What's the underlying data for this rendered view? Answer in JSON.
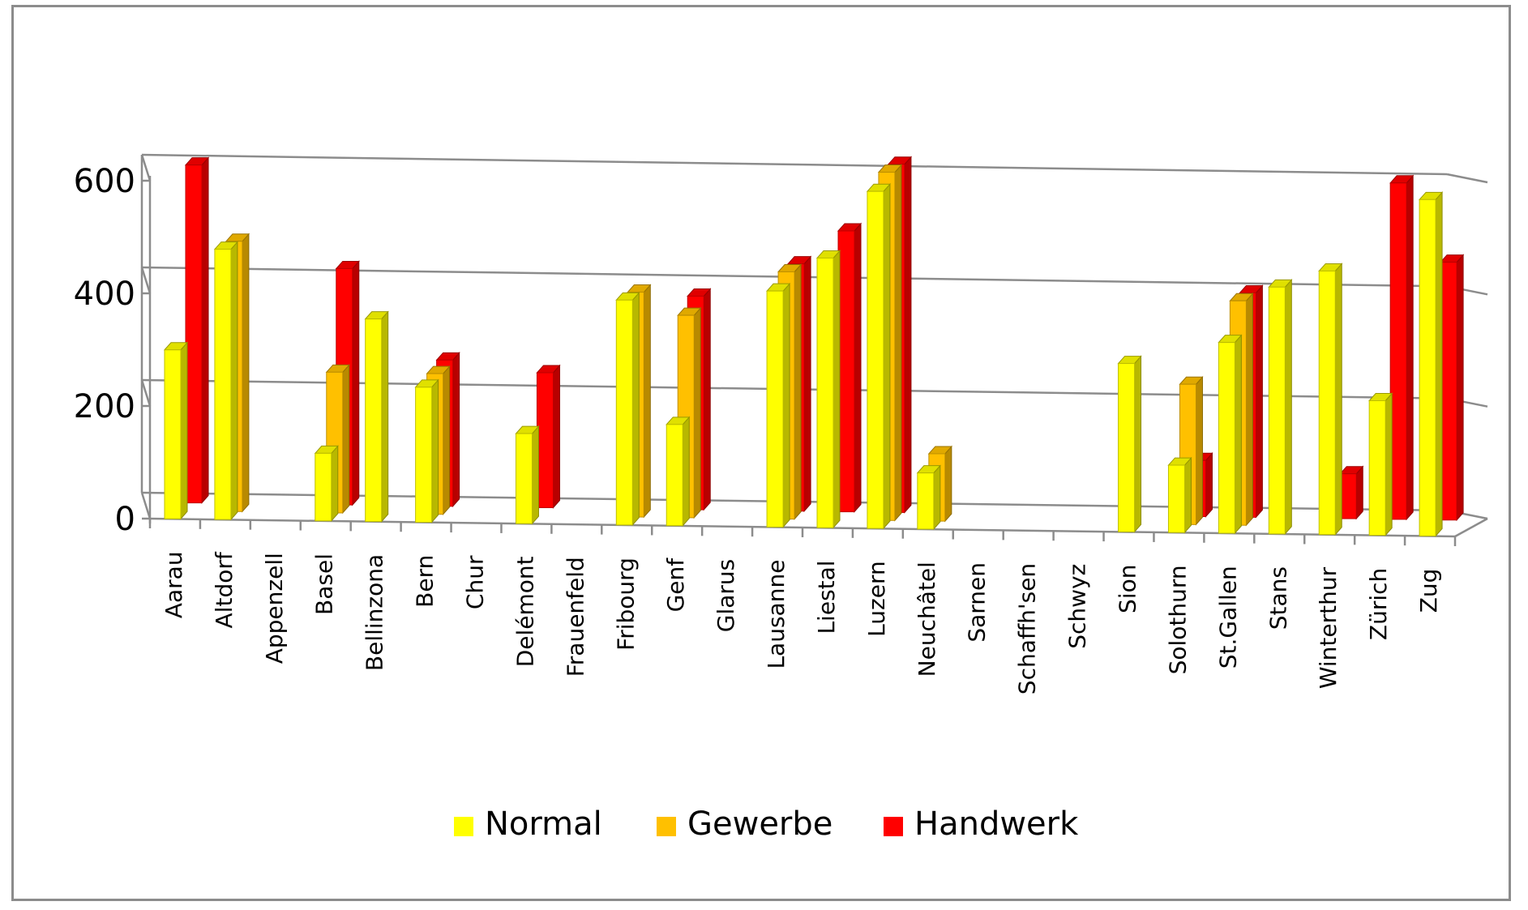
{
  "chart_data": {
    "type": "bar",
    "title": "",
    "xlabel": "",
    "ylabel": "",
    "ylim": [
      0,
      600
    ],
    "yticks": [
      "0",
      "200",
      "400",
      "600"
    ],
    "grid": true,
    "legend_position": "bottom",
    "categories": [
      "Aarau",
      "Altdorf",
      "Appenzell",
      "Basel",
      "Bellinzona",
      "Bern",
      "Chur",
      "Delémont",
      "Frauenfeld",
      "Fribourg",
      "Genf",
      "Glarus",
      "Lausanne",
      "Liestal",
      "Luzern",
      "Neuchâtel",
      "Sarnen",
      "Schaffh'sen",
      "Schwyz",
      "Sion",
      "Solothurn",
      "St.Gallen",
      "Stans",
      "Winterthur",
      "Zürich",
      "Zug"
    ],
    "series": [
      {
        "name": "Normal",
        "color": "#FFFF00",
        "values": [
          300,
          480,
          null,
          120,
          360,
          240,
          null,
          160,
          null,
          400,
          180,
          null,
          420,
          480,
          600,
          100,
          null,
          null,
          null,
          300,
          120,
          340,
          440,
          470,
          240,
          600
        ]
      },
      {
        "name": "Gewerbe",
        "color": "#FFC000",
        "values": [
          null,
          480,
          null,
          250,
          null,
          250,
          null,
          null,
          null,
          400,
          360,
          null,
          440,
          null,
          620,
          120,
          null,
          null,
          null,
          null,
          250,
          400,
          null,
          null,
          null,
          null
        ]
      },
      {
        "name": "Handwerk",
        "color": "#FF0000",
        "values": [
          600,
          null,
          null,
          420,
          null,
          260,
          null,
          240,
          null,
          null,
          380,
          null,
          440,
          500,
          620,
          null,
          null,
          null,
          null,
          null,
          100,
          400,
          null,
          80,
          600,
          460
        ]
      }
    ]
  }
}
